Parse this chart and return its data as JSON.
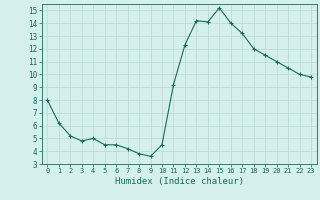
{
  "x": [
    0,
    1,
    2,
    3,
    4,
    5,
    6,
    7,
    8,
    9,
    10,
    11,
    12,
    13,
    14,
    15,
    16,
    17,
    18,
    19,
    20,
    21,
    22,
    23
  ],
  "y": [
    8.0,
    6.2,
    5.2,
    4.8,
    5.0,
    4.5,
    4.5,
    4.2,
    3.8,
    3.6,
    4.5,
    9.2,
    12.3,
    14.2,
    14.1,
    15.2,
    14.0,
    13.2,
    12.0,
    11.5,
    11.0,
    10.5,
    10.0,
    9.8
  ],
  "xlim": [
    -0.5,
    23.5
  ],
  "ylim": [
    3,
    15.5
  ],
  "yticks": [
    3,
    4,
    5,
    6,
    7,
    8,
    9,
    10,
    11,
    12,
    13,
    14,
    15
  ],
  "xticks": [
    0,
    1,
    2,
    3,
    4,
    5,
    6,
    7,
    8,
    9,
    10,
    11,
    12,
    13,
    14,
    15,
    16,
    17,
    18,
    19,
    20,
    21,
    22,
    23
  ],
  "xlabel": "Humidex (Indice chaleur)",
  "line_color": "#1a6b5a",
  "marker": "+",
  "marker_size": 3,
  "background_color": "#d5eeee",
  "grid_color": "#b8d8d8",
  "title": ""
}
